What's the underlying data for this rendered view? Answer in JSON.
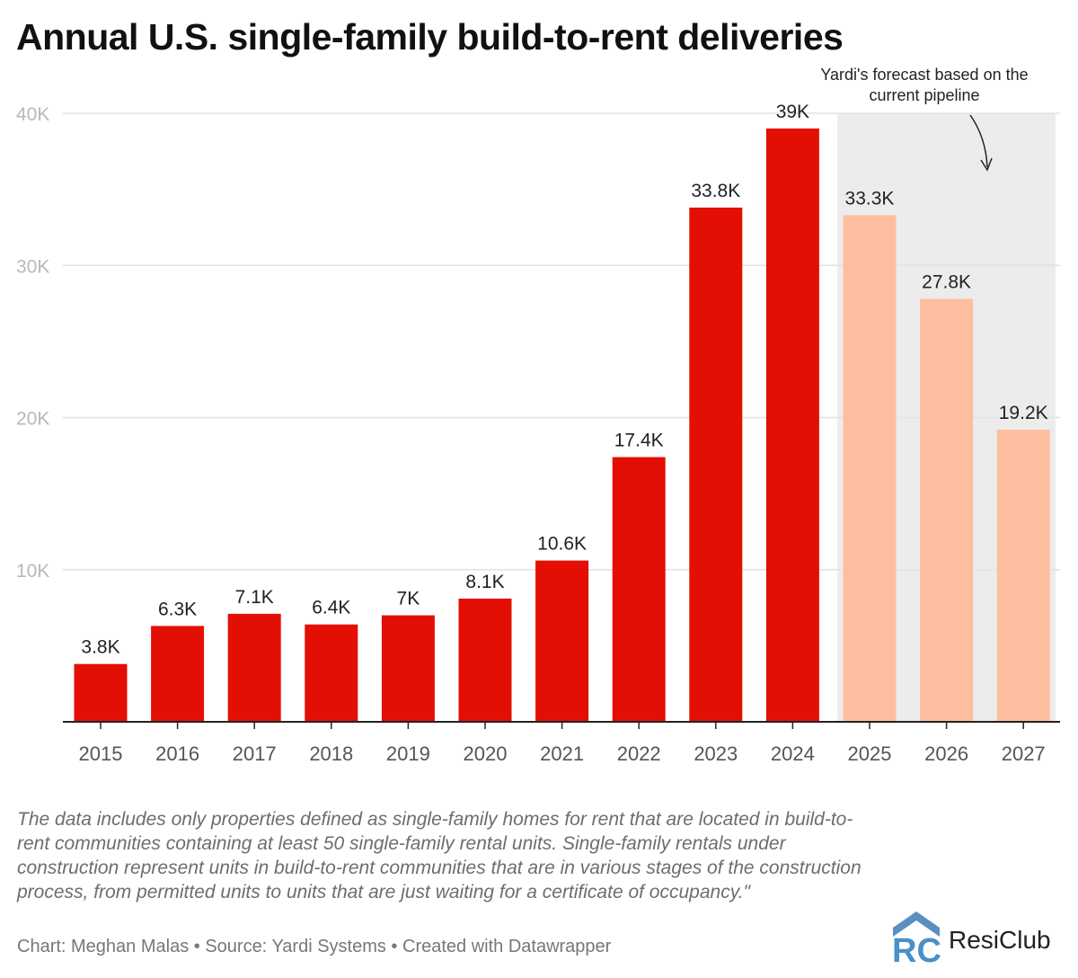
{
  "title": "Annual U.S. single-family build-to-rent deliveries",
  "chart_data": {
    "type": "bar",
    "title": "Annual U.S. single-family build-to-rent deliveries",
    "categories": [
      "2015",
      "2016",
      "2017",
      "2018",
      "2019",
      "2020",
      "2021",
      "2022",
      "2023",
      "2024",
      "2025",
      "2026",
      "2027"
    ],
    "values": [
      3.8,
      6.3,
      7.1,
      6.4,
      7.0,
      8.1,
      10.6,
      17.4,
      33.8,
      39.0,
      33.3,
      27.8,
      19.2
    ],
    "value_unit": "thousand units",
    "data_labels": [
      "3.8K",
      "6.3K",
      "7.1K",
      "6.4K",
      "7K",
      "8.1K",
      "10.6K",
      "17.4K",
      "33.8K",
      "39K",
      "33.3K",
      "27.8K",
      "19.2K"
    ],
    "forecast": [
      false,
      false,
      false,
      false,
      false,
      false,
      false,
      false,
      false,
      false,
      true,
      true,
      true
    ],
    "y_ticks": [
      10,
      20,
      30,
      40
    ],
    "y_tick_labels": [
      "10K",
      "20K",
      "30K",
      "40K"
    ],
    "ylim": [
      0,
      40
    ],
    "xlabel": "",
    "ylabel": "",
    "grid": true,
    "annotation": {
      "lines": [
        "Yardi's forecast based on the",
        "current pipeline"
      ],
      "shaded_range": [
        "2025",
        "2027"
      ]
    },
    "colors": {
      "actual": "#e30f05",
      "forecast": "#ffbda0",
      "shade": "#ececec",
      "grid": "#e2e2e2",
      "axis": "#222222",
      "tick_text": "#b9b9b9",
      "x_text": "#555555",
      "label_text": "#222222"
    }
  },
  "note": "The data includes only properties defined as single-family homes for rent that are located in build-to-rent communities containing at least 50 single-family rental units. Single-family rentals under construction represent units in build-to-rent communities that are in various stages of the construction process, from permitted units to units that are just waiting for a certificate of occupancy.\"",
  "credits": "Chart: Meghan Malas • Source: Yardi Systems • Created with Datawrapper",
  "logo": {
    "text": "ResiClub",
    "mark_letters": "RC",
    "icon": "resiclub-house-logo-icon",
    "colors": {
      "mark": "#4a90c8"
    }
  }
}
